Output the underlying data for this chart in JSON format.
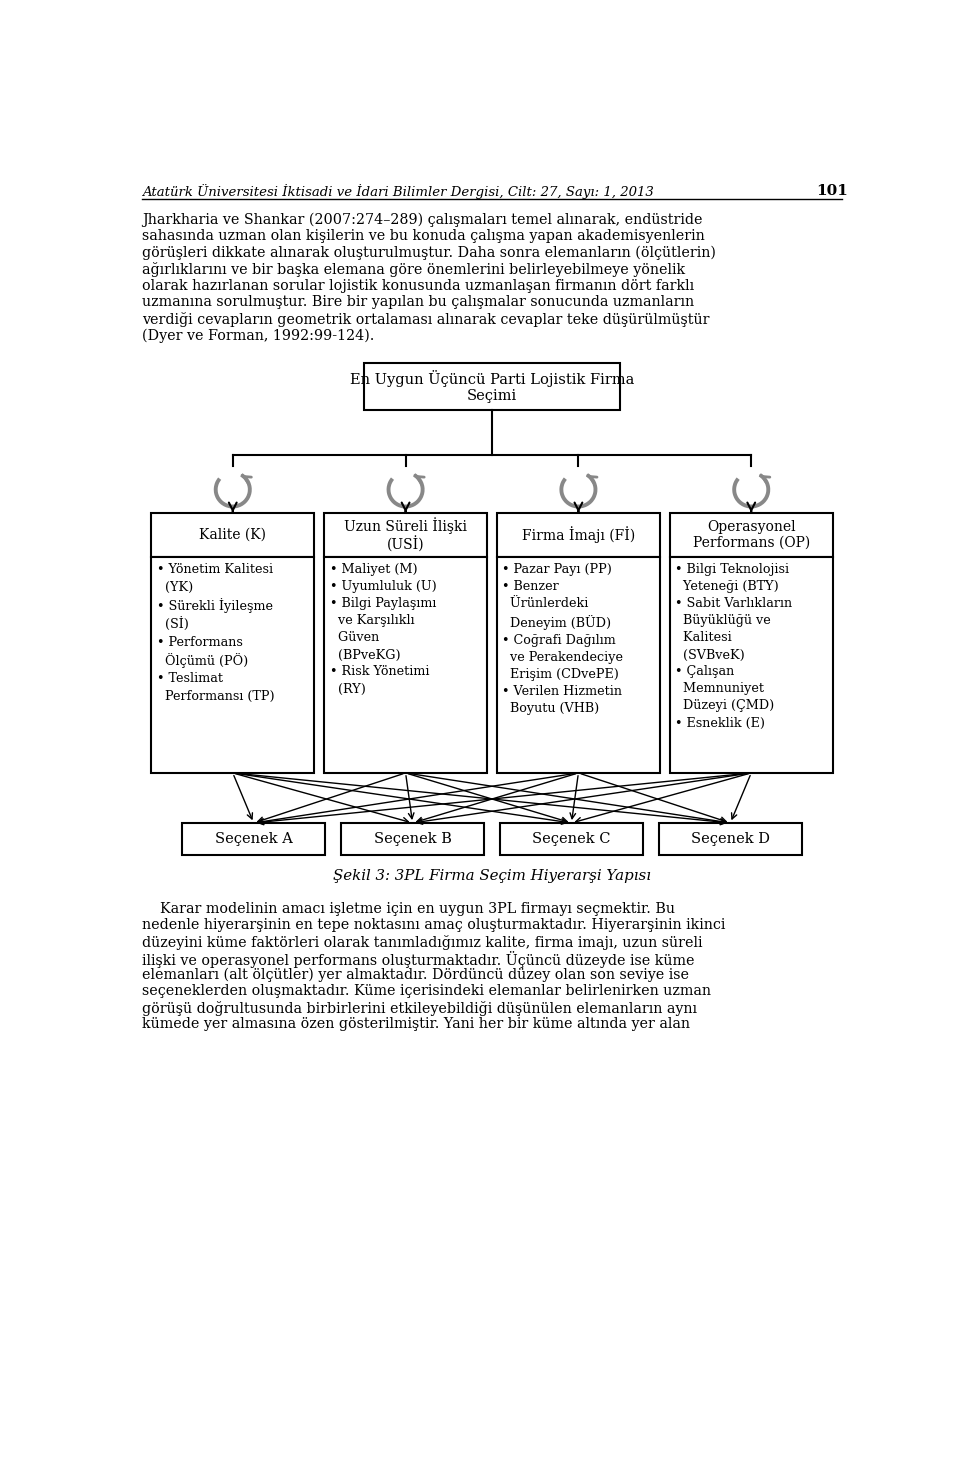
{
  "header_text": "Atatürk Üniversitesi İktisadi ve İdari Bilimler Dergisi, Cilt: 27, Sayı: 1, 2013",
  "header_page": "101",
  "para1_lines": [
    "Jharkharia ve Shankar (2007:274–289) çalışmaları temel alınarak, endüstride",
    "sahasında uzman olan kişilerin ve bu konuda çalışma yapan akademisyenlerin",
    "görüşleri dikkate alınarak oluşturulmuştur. Daha sonra elemanların (ölçütlerin)",
    "ağırlıklarını ve bir başka elemana göre önemlerini belirleyebilmeye yönelik",
    "olarak hazırlanan sorular lojistik konusunda uzmanlaşan firmanın dört farklı",
    "uzmanına sorulmuştur. Bire bir yapılan bu çalışmalar sonucunda uzmanların",
    "verdiği cevapların geometrik ortalaması alınarak cevaplar teke düşürülmüştür",
    "(Dyer ve Forman, 1992:99-124)."
  ],
  "root_label": "En Uygun Üçüncü Parti Lojistik Firma\nSeçimi",
  "level2_headers": [
    "Kalite (K)",
    "Uzun Süreli İlişki\n(USİ)",
    "Firma İmajı (Fİ)",
    "Operasyonel\nPerformans (OP)"
  ],
  "level2_items": [
    "• Yönetim Kalitesi\n  (YK)\n• Sürekli İyileşme\n  (Sİ)\n• Performans\n  Ölçümü (PÖ)\n• Teslimat\n  Performansı (TP)",
    "• Maliyet (M)\n• Uyumluluk (U)\n• Bilgi Paylaşımı\n  ve Karşılıklı\n  Güven\n  (BPveKG)\n• Risk Yönetimi\n  (RY)",
    "• Pazar Payı (PP)\n• Benzer\n  Ürünlerdeki\n  Deneyim (BÜD)\n• Coğrafi Dağılım\n  ve Perakendeciye\n  Erişim (CDvePE)\n• Verilen Hizmetin\n  Boyutu (VHB)",
    "• Bilgi Teknolojisi\n  Yeteneği (BTY)\n• Sabit Varlıkların\n  Büyüklüğü ve\n  Kalitesi\n  (SVBveK)\n• Çalışan\n  Memnuniyet\n  Düzeyi (ÇMD)\n• Esneklik (E)"
  ],
  "level3_labels": [
    "Seçenek A",
    "Seçenek B",
    "Seçenek C",
    "Seçenek D"
  ],
  "caption": "Şekil 3: 3PL Firma Seçim Hiyerarşi Yapısı",
  "para2_lines": [
    "    Karar modelinin amacı işletme için en uygun 3PL firmayı seçmektir. Bu",
    "nedenle hiyerarşinin en tepe noktasını amaç oluşturmaktadır. Hiyerarşinin ikinci",
    "düzeyini küme faktörleri olarak tanımladığımız kalite, firma imajı, uzun süreli",
    "ilişki ve operasyonel performans oluşturmaktadır. Üçüncü düzeyde ise küme",
    "elemanları (alt ölçütler) yer almaktadır. Dördüncü düzey olan son seviye ise",
    "seçeneklerden oluşmaktadır. Küme içerisindeki elemanlar belirlenirken uzman",
    "görüşü doğrultusunda birbirlerini etkileyebildiği düşünülen elemanların aynı",
    "kümede yer almasına özen gösterilmiştir. Yani her bir küme altında yer alan"
  ],
  "bg_color": "#ffffff"
}
